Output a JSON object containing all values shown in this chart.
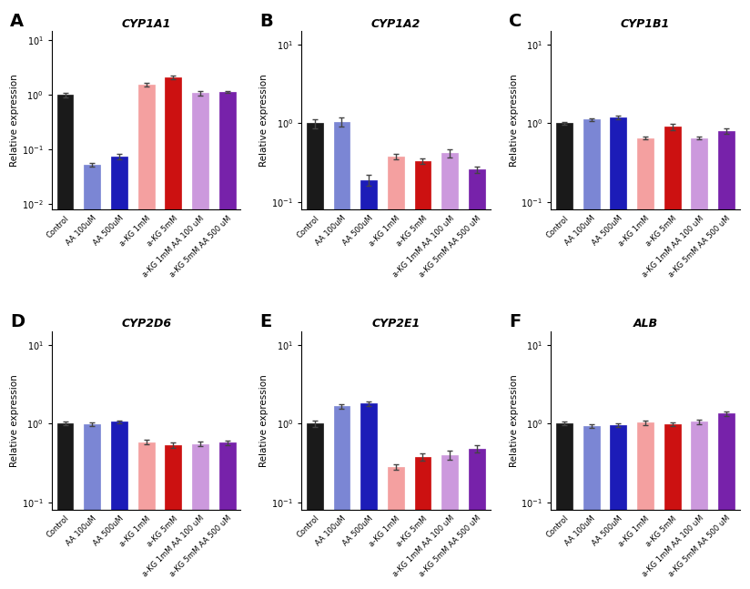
{
  "panels": [
    {
      "label": "A",
      "title": "CYP1A1",
      "ylim": [
        0.008,
        15
      ],
      "yticks": [
        0.01,
        0.1,
        1,
        10
      ],
      "values": [
        1.0,
        0.053,
        0.075,
        1.55,
        2.1,
        1.08,
        1.15
      ],
      "errors": [
        0.09,
        0.004,
        0.008,
        0.12,
        0.18,
        0.1,
        0.05
      ]
    },
    {
      "label": "B",
      "title": "CYP1A2",
      "ylim": [
        0.08,
        15
      ],
      "yticks": [
        0.1,
        1,
        10
      ],
      "values": [
        1.0,
        1.05,
        0.19,
        0.38,
        0.33,
        0.42,
        0.26
      ],
      "errors": [
        0.13,
        0.15,
        0.03,
        0.03,
        0.025,
        0.05,
        0.025
      ]
    },
    {
      "label": "C",
      "title": "CYP1B1",
      "ylim": [
        0.08,
        15
      ],
      "yticks": [
        0.1,
        1,
        10
      ],
      "values": [
        1.0,
        1.12,
        1.2,
        0.65,
        0.9,
        0.65,
        0.8
      ],
      "errors": [
        0.04,
        0.05,
        0.06,
        0.03,
        0.08,
        0.03,
        0.07
      ]
    },
    {
      "label": "D",
      "title": "CYP2D6",
      "ylim": [
        0.08,
        15
      ],
      "yticks": [
        0.1,
        1,
        10
      ],
      "values": [
        1.0,
        0.98,
        1.05,
        0.58,
        0.53,
        0.55,
        0.57
      ],
      "errors": [
        0.05,
        0.05,
        0.05,
        0.04,
        0.04,
        0.04,
        0.04
      ]
    },
    {
      "label": "E",
      "title": "CYP2E1",
      "ylim": [
        0.08,
        15
      ],
      "yticks": [
        0.1,
        1,
        10
      ],
      "values": [
        1.0,
        1.65,
        1.8,
        0.28,
        0.38,
        0.4,
        0.48
      ],
      "errors": [
        0.1,
        0.1,
        0.12,
        0.02,
        0.04,
        0.05,
        0.05
      ]
    },
    {
      "label": "F",
      "title": "ALB",
      "ylim": [
        0.08,
        15
      ],
      "yticks": [
        0.1,
        1,
        10
      ],
      "values": [
        1.0,
        0.93,
        0.95,
        1.02,
        0.98,
        1.05,
        1.35
      ],
      "errors": [
        0.05,
        0.05,
        0.05,
        0.06,
        0.05,
        0.07,
        0.09
      ]
    }
  ],
  "categories": [
    "Control",
    "AA 100uM",
    "AA 500uM",
    "a-KG 1mM",
    "a-KG 5mM",
    "a-KG 1mM AA 100 uM",
    "a-KG 5mM AA 500 uM"
  ],
  "bar_colors": [
    "#1a1a1a",
    "#7B86D4",
    "#1C1CB8",
    "#F4A0A0",
    "#CC1111",
    "#CC99DD",
    "#7722AA"
  ],
  "ylabel": "Relative expression",
  "figsize": [
    8.24,
    6.47
  ],
  "dpi": 100
}
